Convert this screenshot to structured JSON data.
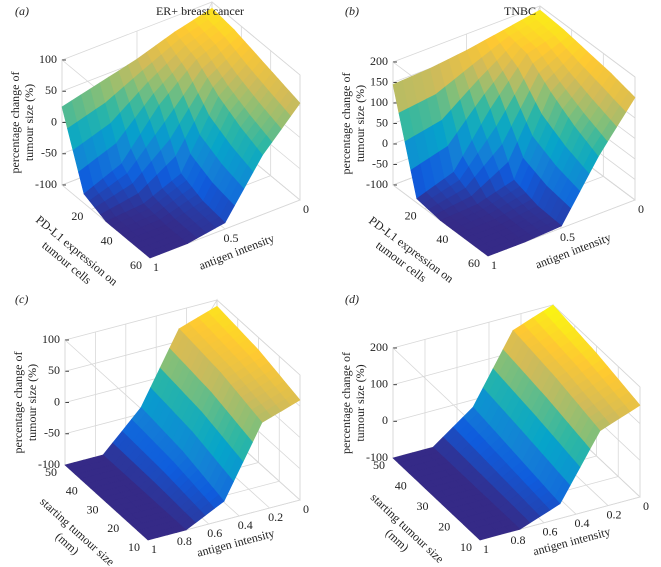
{
  "chart_data": [
    {
      "type": "surface",
      "panel_label": "(a)",
      "title": "ER+ breast cancer",
      "xlabel": "antigen intensity",
      "ylabel": [
        "PD-L1 expression on",
        "tumour cells"
      ],
      "zlabel": [
        "percentage change of",
        "tumour size (%)"
      ],
      "x": [
        0,
        0.25,
        0.5,
        0.75,
        1
      ],
      "y": [
        0,
        15,
        30,
        45,
        60
      ],
      "z": [
        [
          90,
          75,
          55,
          40,
          25
        ],
        [
          85,
          60,
          10,
          -60,
          -85
        ],
        [
          75,
          30,
          -70,
          -95,
          -100
        ],
        [
          65,
          10,
          -85,
          -100,
          -100
        ],
        [
          55,
          -5,
          -90,
          -100,
          -100
        ]
      ],
      "xlim": [
        0,
        1
      ],
      "ylim": [
        0,
        60
      ],
      "zlim": [
        -100,
        100
      ],
      "xticks": [
        0,
        0.5,
        1
      ],
      "yticks": [
        20,
        40,
        60
      ],
      "zticks": [
        -100,
        -50,
        0,
        50,
        100
      ]
    },
    {
      "type": "surface",
      "panel_label": "(b)",
      "title": "TNBC",
      "xlabel": "antigen intensity",
      "ylabel": [
        "PD-L1 expression on",
        "tumour cells"
      ],
      "zlabel": [
        "percentage change of",
        "tumour size (%)"
      ],
      "x": [
        0,
        0.25,
        0.5,
        0.75,
        1
      ],
      "y": [
        0,
        15,
        30,
        45,
        60
      ],
      "z": [
        [
          190,
          175,
          160,
          150,
          145
        ],
        [
          185,
          160,
          60,
          -60,
          -90
        ],
        [
          175,
          110,
          -70,
          -95,
          -100
        ],
        [
          165,
          70,
          -90,
          -100,
          -100
        ],
        [
          150,
          40,
          -95,
          -100,
          -100
        ]
      ],
      "xlim": [
        0,
        1
      ],
      "ylim": [
        0,
        60
      ],
      "zlim": [
        -100,
        200
      ],
      "xticks": [
        0,
        0.5,
        1
      ],
      "yticks": [
        20,
        40,
        60
      ],
      "zticks": [
        -100,
        -50,
        0,
        50,
        100,
        150,
        200
      ]
    },
    {
      "type": "surface",
      "panel_label": "(c)",
      "xlabel": "antigen intensity",
      "ylabel": [
        "starting tumour size",
        "(mm)"
      ],
      "zlabel": [
        "percentage change of",
        "tumour size (%)"
      ],
      "x": [
        0,
        0.25,
        0.5,
        0.75,
        1
      ],
      "y": [
        10,
        20,
        30,
        40,
        50
      ],
      "z": [
        [
          60,
          40,
          -70,
          -100,
          -100
        ],
        [
          70,
          50,
          -60,
          -100,
          -100
        ],
        [
          80,
          60,
          -50,
          -100,
          -100
        ],
        [
          85,
          65,
          -45,
          -100,
          -100
        ],
        [
          90,
          70,
          -40,
          -100,
          -100
        ]
      ],
      "xlim": [
        0,
        1
      ],
      "ylim": [
        10,
        50
      ],
      "zlim": [
        -100,
        100
      ],
      "xticks": [
        0,
        0.2,
        0.4,
        0.6,
        0.8,
        1
      ],
      "yticks": [
        10,
        20,
        30,
        40,
        50
      ],
      "zticks": [
        -100,
        -50,
        0,
        50,
        100
      ]
    },
    {
      "type": "surface",
      "panel_label": "(d)",
      "xlabel": "antigen intensity",
      "ylabel": [
        "starting tumour size",
        "(mm)"
      ],
      "zlabel": [
        "percentage change of",
        "tumour size (%)"
      ],
      "x": [
        0,
        0.25,
        0.5,
        0.75,
        1
      ],
      "y": [
        10,
        20,
        30,
        40,
        50
      ],
      "z": [
        [
          150,
          110,
          -60,
          -100,
          -100
        ],
        [
          165,
          125,
          -50,
          -100,
          -100
        ],
        [
          180,
          140,
          -40,
          -100,
          -100
        ],
        [
          190,
          150,
          -30,
          -100,
          -100
        ],
        [
          200,
          160,
          -20,
          -100,
          -100
        ]
      ],
      "xlim": [
        0,
        1
      ],
      "ylim": [
        10,
        50
      ],
      "zlim": [
        -100,
        200
      ],
      "xticks": [
        0,
        0.2,
        0.4,
        0.6,
        0.8,
        1
      ],
      "yticks": [
        10,
        20,
        30,
        40,
        50
      ],
      "zticks": [
        -100,
        0,
        100,
        200
      ]
    }
  ]
}
